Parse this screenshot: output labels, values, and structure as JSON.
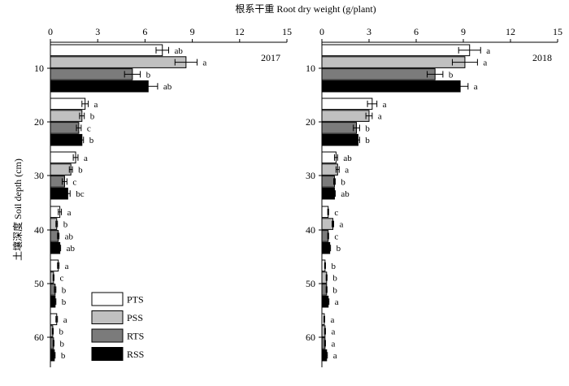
{
  "figure": {
    "title": "根系干重 Root dry weight (g/plant)",
    "ylabel": "土壤深度 Soil depth (cm)"
  },
  "legend": [
    {
      "label": "PTS",
      "color": "#ffffff"
    },
    {
      "label": "PSS",
      "color": "#c0c0c0"
    },
    {
      "label": "RTS",
      "color": "#7b7b7b"
    },
    {
      "label": "RSS",
      "color": "#000000"
    }
  ],
  "chart_data": [
    {
      "type": "bar",
      "orientation": "horizontal",
      "year": "2017",
      "xlim": [
        0,
        15
      ],
      "xticks": [
        0,
        3,
        6,
        9,
        12,
        15
      ],
      "depths": [
        "10",
        "20",
        "30",
        "40",
        "50",
        "60"
      ],
      "series_labels": [
        "PTS",
        "PSS",
        "RTS",
        "RSS"
      ],
      "values": [
        [
          7.1,
          8.6,
          5.2,
          6.2
        ],
        [
          2.2,
          2.0,
          1.8,
          2.0
        ],
        [
          1.6,
          1.3,
          0.9,
          1.1
        ],
        [
          0.6,
          0.4,
          0.5,
          0.6
        ],
        [
          0.5,
          0.2,
          0.3,
          0.3
        ],
        [
          0.4,
          0.15,
          0.2,
          0.25
        ]
      ],
      "errors": [
        [
          0.4,
          0.7,
          0.5,
          0.6
        ],
        [
          0.2,
          0.15,
          0.15,
          0.1
        ],
        [
          0.15,
          0.1,
          0.15,
          0.15
        ],
        [
          0.1,
          0.05,
          0.05,
          0.05
        ],
        [
          0.05,
          0.03,
          0.05,
          0.05
        ],
        [
          0.05,
          0.03,
          0.03,
          0.05
        ]
      ],
      "letters": [
        [
          "ab",
          "a",
          "b",
          "ab"
        ],
        [
          "a",
          "b",
          "c",
          "b"
        ],
        [
          "a",
          "b",
          "c",
          "bc"
        ],
        [
          "a",
          "b",
          "ab",
          "ab"
        ],
        [
          "a",
          "c",
          "b",
          "b"
        ],
        [
          "a",
          "b",
          "b",
          "b"
        ]
      ]
    },
    {
      "type": "bar",
      "orientation": "horizontal",
      "year": "2018",
      "xlim": [
        0,
        15
      ],
      "xticks": [
        0,
        3,
        6,
        9,
        12,
        15
      ],
      "depths": [
        "10",
        "20",
        "30",
        "40",
        "50",
        "60"
      ],
      "series_labels": [
        "PTS",
        "PSS",
        "RTS",
        "RSS"
      ],
      "values": [
        [
          9.4,
          9.1,
          7.2,
          8.8
        ],
        [
          3.2,
          3.0,
          2.2,
          2.3
        ],
        [
          0.9,
          1.0,
          0.8,
          0.8
        ],
        [
          0.4,
          0.7,
          0.4,
          0.5
        ],
        [
          0.2,
          0.3,
          0.3,
          0.4
        ],
        [
          0.15,
          0.2,
          0.2,
          0.3
        ]
      ],
      "errors": [
        [
          0.7,
          0.8,
          0.5,
          0.5
        ],
        [
          0.3,
          0.2,
          0.2,
          0.1
        ],
        [
          0.1,
          0.1,
          0.05,
          0.05
        ],
        [
          0.03,
          0.05,
          0.03,
          0.05
        ],
        [
          0.03,
          0.03,
          0.03,
          0.05
        ],
        [
          0.03,
          0.03,
          0.03,
          0.05
        ]
      ],
      "letters": [
        [
          "a",
          "a",
          "b",
          "a"
        ],
        [
          "a",
          "a",
          "b",
          "b"
        ],
        [
          "ab",
          "a",
          "b",
          "ab"
        ],
        [
          "c",
          "a",
          "c",
          "b"
        ],
        [
          "b",
          "b",
          "b",
          "a"
        ],
        [
          "a",
          "a",
          "a",
          "a"
        ]
      ]
    }
  ]
}
